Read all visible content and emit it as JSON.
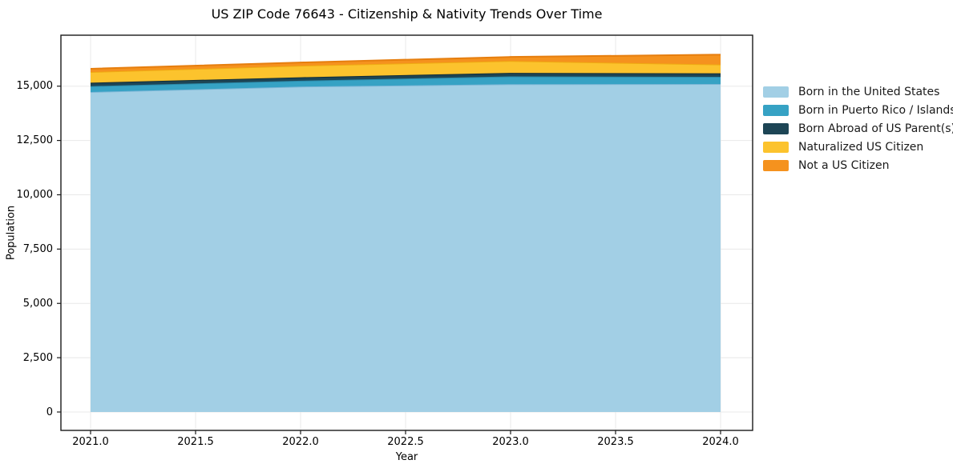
{
  "chart_data": {
    "type": "area",
    "stacked": true,
    "title": "US ZIP Code 76643 - Citizenship & Nativity Trends Over Time",
    "xlabel": "Year",
    "ylabel": "Population",
    "x": [
      2021,
      2022,
      2023,
      2024
    ],
    "series": [
      {
        "name": "Born in the United States",
        "color": "#a2cfe5",
        "edge_color": "#7cb6d6",
        "values": [
          14730,
          14980,
          15090,
          15100
        ]
      },
      {
        "name": "Born in Puerto Rico / Islands",
        "color": "#36a2c4",
        "edge_color": "#2b89a8",
        "values": [
          270,
          270,
          360,
          330
        ]
      },
      {
        "name": "Born Abroad of US Parent(s)",
        "color": "#1d4555",
        "edge_color": "#122d38",
        "values": [
          160,
          160,
          160,
          160
        ]
      },
      {
        "name": "Naturalized US Citizen",
        "color": "#fcc32d",
        "edge_color": "#efab12",
        "values": [
          490,
          530,
          550,
          405
        ]
      },
      {
        "name": "Not a US Citizen",
        "color": "#f5921e",
        "edge_color": "#e67e0e",
        "values": [
          150,
          150,
          185,
          455
        ]
      }
    ],
    "xticks": {
      "values": [
        2021.0,
        2021.5,
        2022.0,
        2022.5,
        2023.0,
        2023.5,
        2024.0
      ],
      "labels": [
        "2021.0",
        "2021.5",
        "2022.0",
        "2022.5",
        "2023.0",
        "2023.5",
        "2024.0"
      ]
    },
    "yticks": {
      "values": [
        0,
        2500,
        5000,
        7500,
        10000,
        12500,
        15000
      ],
      "labels": [
        "0",
        "2,500",
        "5,000",
        "7,500",
        "10,000",
        "12,500",
        "15,000"
      ]
    },
    "xlim": [
      2020.85,
      2024.15
    ],
    "ylim": [
      -850,
      17350
    ],
    "grid": true,
    "grid_color": "#e8e8e8",
    "axis_color": "#1a1a1a",
    "legend_position": "right",
    "legend_frame": false
  }
}
